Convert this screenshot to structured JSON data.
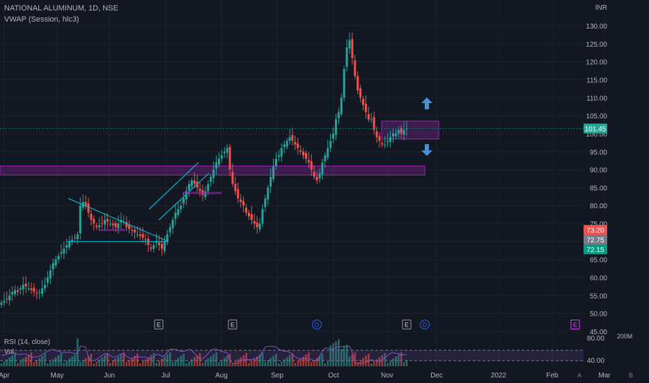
{
  "header": {
    "title": "NATIONAL ALUMINUM, 1D, NSE",
    "indicator": "VWAP (Session, hlc3)",
    "currency": "INR"
  },
  "rsi_label": "RSI (14, close)",
  "vol_label": "Vol",
  "colors": {
    "background": "#131722",
    "up": "#26a69a",
    "down": "#ef5350",
    "trendline": "#00bcd4",
    "zone": "#9c27b0",
    "arrow": "#2962ff",
    "rsi_line": "#7e57c2",
    "grid": "#1e222d"
  },
  "chart_data": {
    "type": "candlestick",
    "title": "NATIONAL ALUMINUM, 1D, NSE",
    "ylim": [
      45,
      130
    ],
    "y_ticks": [
      "130.00",
      "125.00",
      "120.00",
      "115.00",
      "110.00",
      "105.00",
      "100.00",
      "95.00",
      "90.00",
      "85.00",
      "80.00",
      "75.00",
      "70.00",
      "65.00",
      "60.00",
      "55.00",
      "50.00",
      "45.00"
    ],
    "x_ticks": [
      "Apr",
      "May",
      "Jun",
      "Jul",
      "Aug",
      "Sep",
      "Oct",
      "Nov",
      "Dec",
      "2022",
      "Feb",
      "Mar"
    ],
    "approx_close": [
      53,
      53.5,
      54,
      55,
      56,
      56.5,
      56,
      57,
      58,
      57.5,
      57,
      56.5,
      56,
      55.5,
      56,
      57,
      58,
      60,
      62,
      64,
      65,
      66,
      67,
      68,
      69,
      70,
      70.5,
      71,
      72,
      80,
      81,
      80,
      78,
      76,
      75,
      74,
      74.5,
      75,
      76,
      75.5,
      75,
      74.5,
      74,
      75,
      76,
      75.5,
      74,
      73.5,
      73,
      72.5,
      72,
      71.5,
      71,
      70.5,
      69,
      68,
      69,
      70,
      69,
      68,
      70,
      72,
      74,
      76,
      78,
      79,
      80,
      82,
      84,
      86,
      87,
      86,
      85,
      84,
      83,
      84,
      86,
      88,
      90,
      92,
      93,
      94,
      95,
      96,
      90,
      86,
      84,
      82,
      81,
      80,
      78,
      77,
      76,
      75,
      74,
      75,
      79,
      82,
      85,
      88,
      91,
      93,
      94,
      96,
      97,
      98,
      99,
      98,
      97,
      96,
      95,
      94,
      93,
      92,
      90,
      88,
      87,
      89,
      92,
      94,
      96,
      98,
      100,
      104,
      106,
      110,
      118,
      124,
      126,
      121,
      116,
      112,
      110,
      108,
      106,
      104,
      104,
      101,
      99,
      98,
      97,
      97,
      98,
      99,
      100,
      100,
      101,
      100,
      101,
      101.45
    ],
    "volume_profile": "relative",
    "horizontal_levels": {
      "last_price": "101.45",
      "other_labels": [
        "73.20",
        "72.75",
        "72.15"
      ]
    },
    "zones": [
      {
        "from": 88.5,
        "to": 91
      },
      {
        "from": 98.5,
        "to": 103.5
      }
    ],
    "rsi": {
      "label": "RSI (14, close)",
      "ticks": [
        "80.00",
        "40.00"
      ],
      "levels": [
        70,
        30
      ]
    },
    "volume": {
      "label": "Vol",
      "tick": "200M"
    },
    "events": [
      {
        "label": "E",
        "at": "Jun-end"
      },
      {
        "label": "E",
        "at": "Aug-start"
      },
      {
        "label": "D",
        "at": "Sep-end"
      },
      {
        "label": "E",
        "at": "Nov-start"
      },
      {
        "label": "D",
        "at": "Nov-mid"
      },
      {
        "label": "E",
        "at": "Mar"
      }
    ],
    "bottom_badges": [
      "A",
      "B"
    ]
  }
}
